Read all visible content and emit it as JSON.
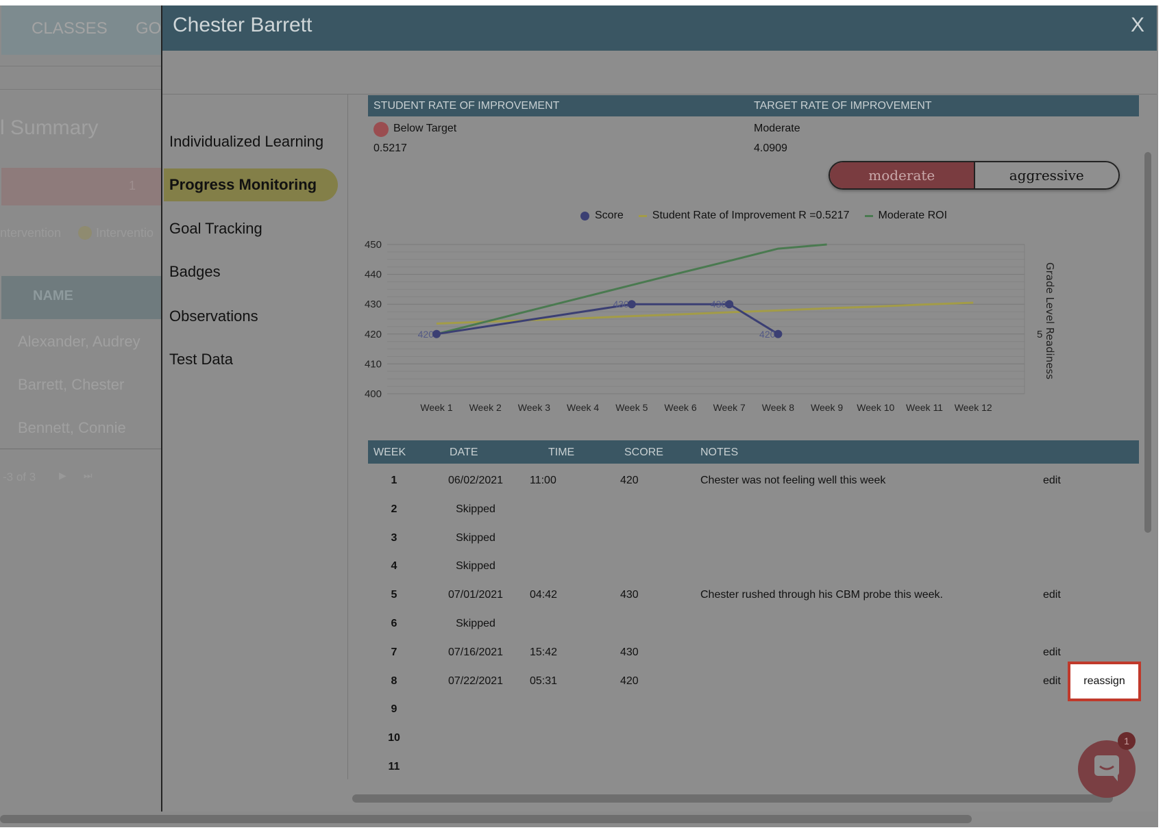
{
  "background": {
    "nav": [
      "CLASSES",
      "GO"
    ],
    "summary_title": "l Summary",
    "count": "1",
    "legend": [
      "ntervention",
      "Interventio"
    ],
    "name_header": "NAME",
    "students": [
      "Alexander, Audrey",
      "Barrett, Chester",
      "Bennett, Connie"
    ],
    "pagination": "-3 of 3"
  },
  "modal": {
    "title": "Chester Barrett",
    "close": "X",
    "nav": [
      "Individualized Learning",
      "Progress Monitoring",
      "Goal Tracking",
      "Badges",
      "Observations",
      "Test Data"
    ],
    "active_nav": "Progress Monitoring"
  },
  "roi": {
    "student_header": "STUDENT RATE OF IMPROVEMENT",
    "target_header": "TARGET RATE OF IMPROVEMENT",
    "student_status": "Below Target",
    "student_value": "0.5217",
    "target_level": "Moderate",
    "target_value": "4.0909",
    "toggle": [
      "moderate",
      "aggressive"
    ],
    "toggle_selected": "moderate",
    "status_color": "#9a4d50"
  },
  "chart_data": {
    "type": "line",
    "categories": [
      "Week 1",
      "Week 2",
      "Week 3",
      "Week 4",
      "Week 5",
      "Week 6",
      "Week 7",
      "Week 8",
      "Week 9",
      "Week 10",
      "Week 11",
      "Week 12"
    ],
    "ylim": [
      400,
      450
    ],
    "yticks": [
      "400",
      "410",
      "420",
      "430",
      "440",
      "450"
    ],
    "right_axis_label": "Grade Level Readiness",
    "right_axis_tick": "5",
    "legend": [
      "Score",
      "Student Rate of Improvement R =0.5217",
      "Moderate ROI"
    ],
    "series": [
      {
        "name": "Score",
        "color": "#3b3f73",
        "values": [
          420,
          null,
          null,
          null,
          430,
          null,
          430,
          420,
          null,
          null,
          null,
          null
        ],
        "labels": true
      },
      {
        "name": "Student Rate of Improvement R =0.5217",
        "color": "#a39c47",
        "values": [
          423.5,
          424.1,
          424.7,
          425.3,
          426.0,
          426.6,
          427.3,
          427.9,
          428.6,
          429.2,
          429.9,
          430.5
        ]
      },
      {
        "name": "Moderate ROI",
        "color": "#4a7a50",
        "values": [
          420,
          424.1,
          428.2,
          432.3,
          436.4,
          440.5,
          444.5,
          448.6,
          450,
          null,
          null,
          null
        ]
      }
    ]
  },
  "table": {
    "headers": [
      "WEEK",
      "DATE",
      "TIME",
      "SCORE",
      "NOTES"
    ],
    "rows": [
      {
        "week": "1",
        "date": "06/02/2021",
        "time": "11:00",
        "score": "420",
        "notes": "Chester was not feeling well this week",
        "action": "edit"
      },
      {
        "week": "2",
        "date": "Skipped"
      },
      {
        "week": "3",
        "date": "Skipped"
      },
      {
        "week": "4",
        "date": "Skipped"
      },
      {
        "week": "5",
        "date": "07/01/2021",
        "time": "04:42",
        "score": "430",
        "notes": "Chester rushed through his CBM probe this week.",
        "action": "edit"
      },
      {
        "week": "6",
        "date": "Skipped"
      },
      {
        "week": "7",
        "date": "07/16/2021",
        "time": "15:42",
        "score": "430",
        "action": "edit"
      },
      {
        "week": "8",
        "date": "07/22/2021",
        "time": "05:31",
        "score": "420",
        "action": "edit",
        "extra": "reassign"
      },
      {
        "week": "9"
      },
      {
        "week": "10"
      },
      {
        "week": "11"
      }
    ]
  },
  "chat": {
    "badge": "1"
  }
}
